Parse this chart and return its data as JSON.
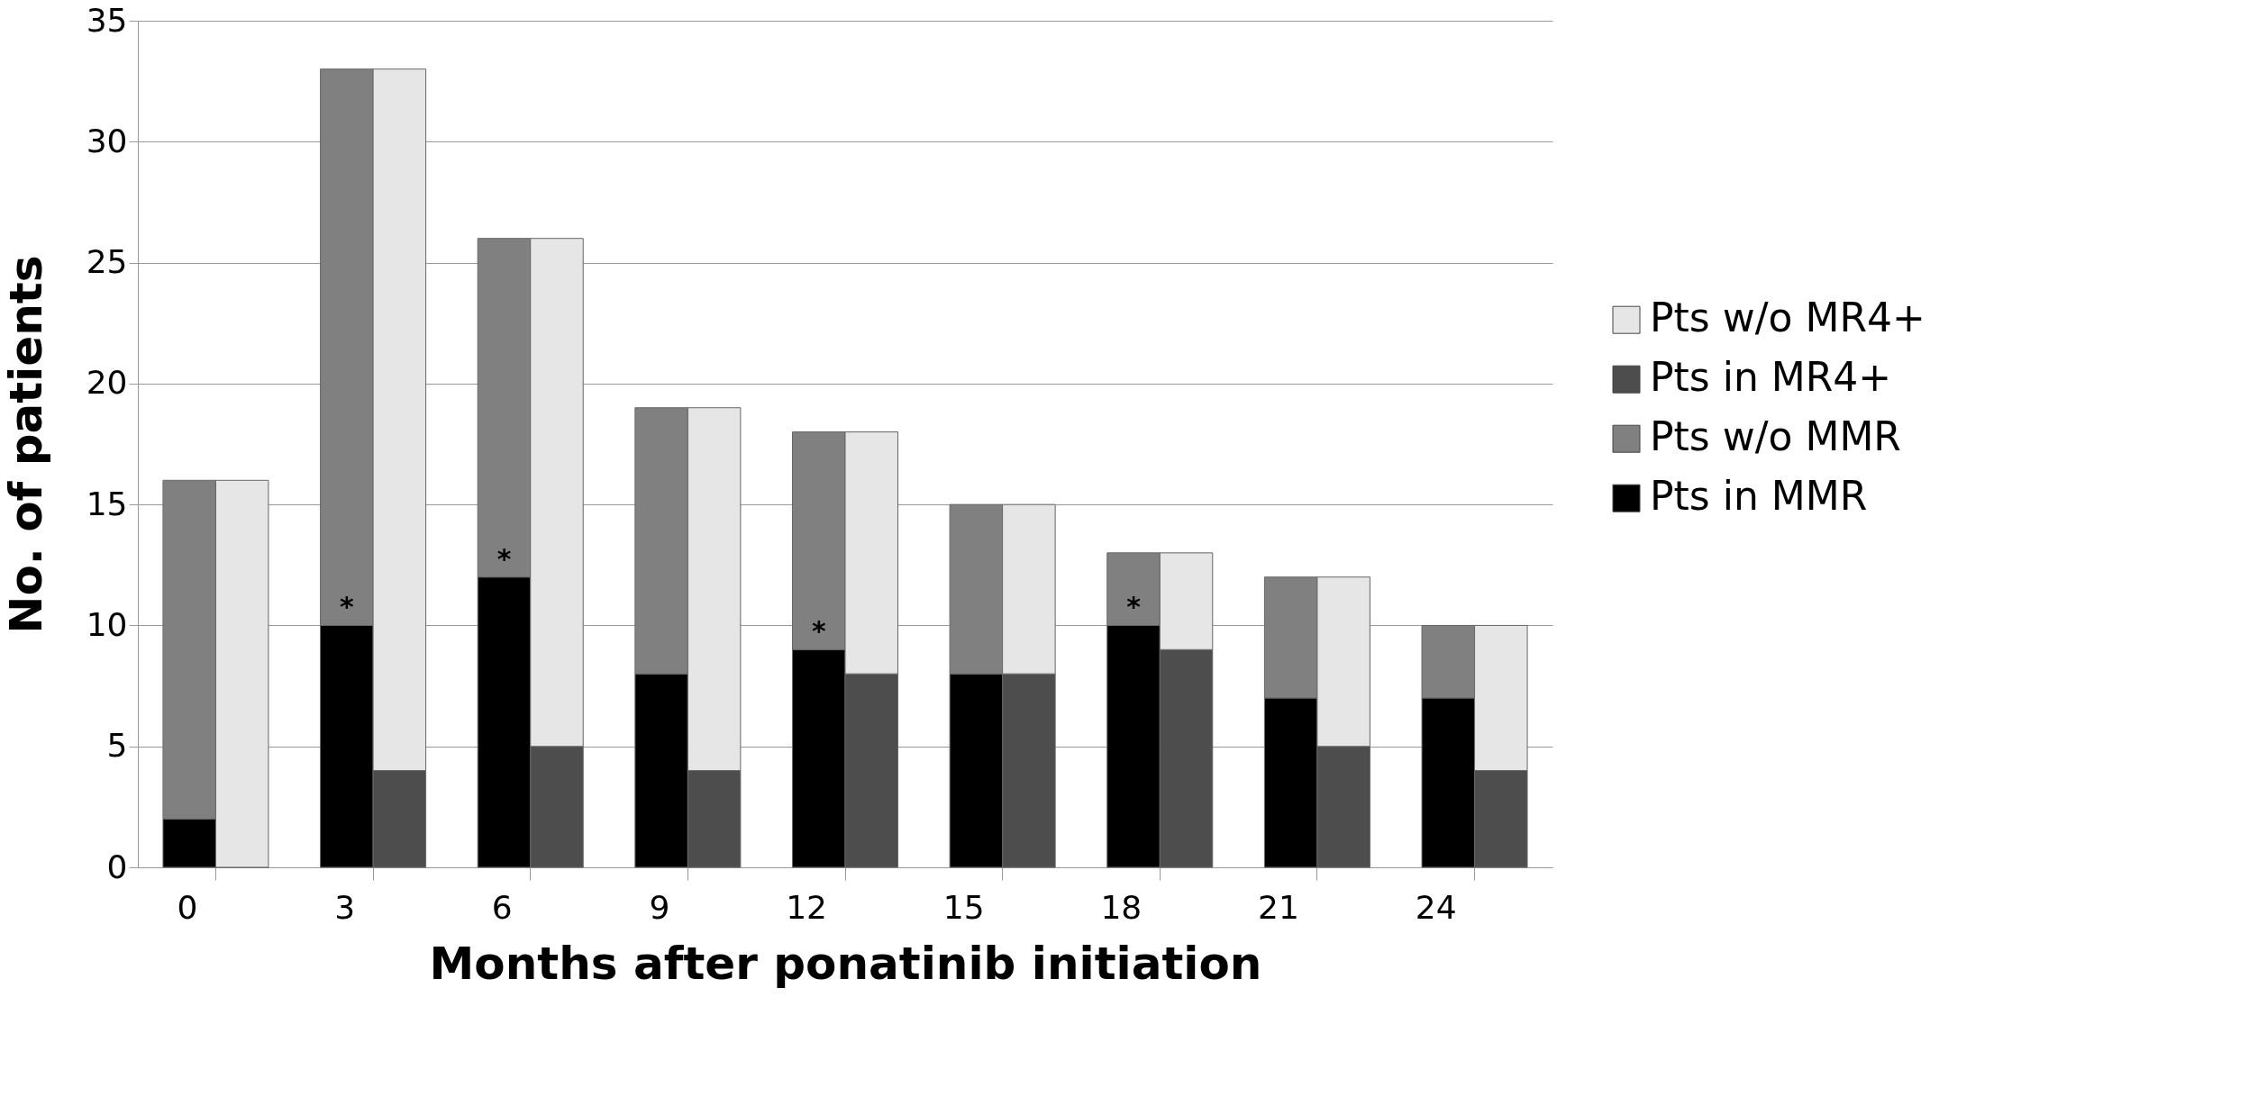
{
  "chart_data": {
    "type": "bar",
    "stacked": true,
    "xlabel": "Months after ponatinib initiation",
    "ylabel": "No. of patients",
    "categories": [
      "0",
      null,
      "3",
      null,
      "6",
      null,
      "9",
      null,
      "12",
      null,
      "15",
      null,
      "18",
      null,
      "21",
      null,
      "24",
      null
    ],
    "series": [
      {
        "name": "Pts in MMR",
        "color": "#000000",
        "values": [
          2,
          null,
          10,
          null,
          12,
          null,
          8,
          null,
          9,
          null,
          8,
          null,
          10,
          null,
          7,
          null,
          7,
          null
        ]
      },
      {
        "name": "Pts w/o MMR",
        "color": "#808080",
        "values": [
          14,
          null,
          23,
          null,
          14,
          null,
          11,
          null,
          9,
          null,
          7,
          null,
          3,
          null,
          5,
          null,
          3,
          null
        ]
      },
      {
        "name": "Pts in MR4+",
        "color": "#4d4d4d",
        "values": [
          null,
          0,
          null,
          4,
          null,
          5,
          null,
          4,
          null,
          8,
          null,
          8,
          null,
          9,
          null,
          5,
          null,
          4
        ]
      },
      {
        "name": "Pts w/o MR4+",
        "color": "#e6e6e6",
        "values": [
          null,
          16,
          null,
          29,
          null,
          21,
          null,
          15,
          null,
          10,
          null,
          7,
          null,
          4,
          null,
          7,
          null,
          6
        ]
      }
    ],
    "ylim": [
      0,
      35
    ],
    "yticks": [
      0,
      5,
      10,
      15,
      20,
      25,
      30,
      35
    ],
    "grid": "y",
    "legend": "right",
    "annotations": [
      {
        "text": "*",
        "x": "3",
        "y": 10
      },
      {
        "text": "*",
        "x": "6",
        "y": 12
      },
      {
        "text": "*",
        "x": "12",
        "y": 9
      },
      {
        "text": "*",
        "x": "18",
        "y": 10
      }
    ]
  }
}
